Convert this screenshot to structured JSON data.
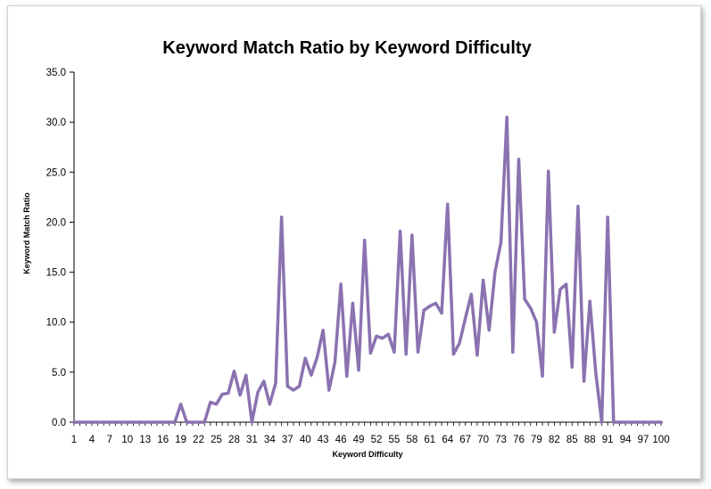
{
  "chart_data": {
    "type": "line",
    "title": "Keyword Match Ratio by Keyword Difficulty",
    "xlabel": "Keyword Difficulty",
    "ylabel": "Keyword Match Ratio",
    "ylim": [
      0,
      35
    ],
    "yticks": [
      "0.0",
      "5.0",
      "10.0",
      "15.0",
      "20.0",
      "25.0",
      "30.0",
      "35.0"
    ],
    "xtick_labels": [
      "1",
      "4",
      "7",
      "10",
      "13",
      "16",
      "19",
      "22",
      "25",
      "28",
      "31",
      "34",
      "37",
      "40",
      "43",
      "46",
      "49",
      "52",
      "55",
      "58",
      "61",
      "64",
      "67",
      "70",
      "73",
      "76",
      "79",
      "82",
      "85",
      "88",
      "91",
      "94",
      "97",
      "100"
    ],
    "grid": false,
    "legend": "none",
    "series_color": "#8B72B0",
    "x": [
      1,
      2,
      3,
      4,
      5,
      6,
      7,
      8,
      9,
      10,
      11,
      12,
      13,
      14,
      15,
      16,
      17,
      18,
      19,
      20,
      21,
      22,
      23,
      24,
      25,
      26,
      27,
      28,
      29,
      30,
      31,
      32,
      33,
      34,
      35,
      36,
      37,
      38,
      39,
      40,
      41,
      42,
      43,
      44,
      45,
      46,
      47,
      48,
      49,
      50,
      51,
      52,
      53,
      54,
      55,
      56,
      57,
      58,
      59,
      60,
      61,
      62,
      63,
      64,
      65,
      66,
      67,
      68,
      69,
      70,
      71,
      72,
      73,
      74,
      75,
      76,
      77,
      78,
      79,
      80,
      81,
      82,
      83,
      84,
      85,
      86,
      87,
      88,
      89,
      90,
      91,
      92,
      93,
      94,
      95,
      96,
      97,
      98,
      99,
      100
    ],
    "values": [
      0,
      0,
      0,
      0,
      0,
      0,
      0,
      0,
      0,
      0,
      0,
      0,
      0,
      0,
      0,
      0,
      0,
      0,
      1.8,
      0,
      0,
      0,
      0,
      2.0,
      1.8,
      2.8,
      2.9,
      5.1,
      2.7,
      4.7,
      0,
      3.0,
      4.1,
      1.8,
      3.9,
      20.5,
      3.6,
      3.2,
      3.6,
      6.4,
      4.7,
      6.5,
      9.2,
      3.2,
      6.0,
      13.8,
      4.6,
      11.9,
      5.2,
      18.2,
      6.9,
      8.6,
      8.4,
      8.8,
      7.0,
      19.1,
      6.8,
      18.7,
      7.0,
      11.2,
      11.6,
      11.9,
      10.9,
      21.8,
      6.8,
      7.9,
      10.4,
      12.8,
      6.7,
      14.2,
      9.2,
      15.0,
      18.0,
      30.5,
      7.0,
      26.3,
      12.3,
      11.4,
      10.0,
      4.6,
      25.1,
      9.0,
      13.3,
      13.8,
      5.5,
      21.6,
      4.1,
      12.1,
      4.9,
      0,
      20.5,
      0,
      0,
      0,
      0,
      0,
      0,
      0,
      0,
      0
    ]
  }
}
